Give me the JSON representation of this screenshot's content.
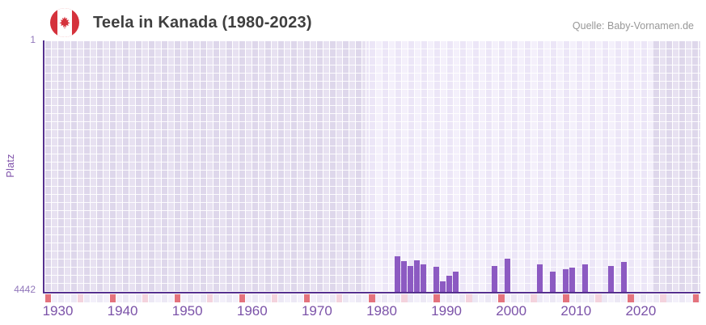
{
  "header": {
    "title": "Teela in Kanada (1980-2023)",
    "source": "Quelle: Baby-Vornamen.de"
  },
  "chart_data": {
    "type": "bar",
    "title": "Teela in Kanada (1980-2023)",
    "ylabel": "Platz",
    "y_axis": {
      "top_label": "1",
      "bottom_label": "4442",
      "min": 1,
      "max": 4442,
      "inverted": true
    },
    "x_axis": {
      "start_year": 1930,
      "end_year": 2030,
      "tick_labels": [
        "1930",
        "1940",
        "1950",
        "1960",
        "1970",
        "1980",
        "1990",
        "2000",
        "2010",
        "2020"
      ]
    },
    "highlight_range": {
      "from": 1980,
      "to": 2023
    },
    "series": [
      {
        "year": 1984,
        "rank": 3820
      },
      {
        "year": 1985,
        "rank": 3900
      },
      {
        "year": 1986,
        "rank": 3980
      },
      {
        "year": 1987,
        "rank": 3880
      },
      {
        "year": 1988,
        "rank": 3950
      },
      {
        "year": 1990,
        "rank": 4000
      },
      {
        "year": 1991,
        "rank": 4260
      },
      {
        "year": 1992,
        "rank": 4160
      },
      {
        "year": 1993,
        "rank": 4090
      },
      {
        "year": 1999,
        "rank": 3980
      },
      {
        "year": 2001,
        "rank": 3850
      },
      {
        "year": 2006,
        "rank": 3960
      },
      {
        "year": 2008,
        "rank": 4090
      },
      {
        "year": 2010,
        "rank": 4040
      },
      {
        "year": 2011,
        "rank": 4010
      },
      {
        "year": 2013,
        "rank": 3950
      },
      {
        "year": 2017,
        "rank": 3990
      },
      {
        "year": 2019,
        "rank": 3920
      }
    ],
    "colors": {
      "bar": "#8c5ac2",
      "axis_line": "#55308f",
      "decade_marker": "#e4737d",
      "half_decade_marker": "#f4d3dd",
      "x_label": "#7b52a8",
      "y_label": "#9177bb",
      "y_title": "#7d4fa9",
      "band_cell_a": "#ece6f7",
      "band_cell_b": "#f4f0fb",
      "out_cell_a": "#ded7eb",
      "out_cell_b": "#e7e1f1",
      "strip_cell_a": "#ece8f5",
      "strip_cell_b": "#f3f0fa",
      "title": "#3f3f3f",
      "source": "#979797",
      "flag_red": "#d5323c"
    }
  }
}
